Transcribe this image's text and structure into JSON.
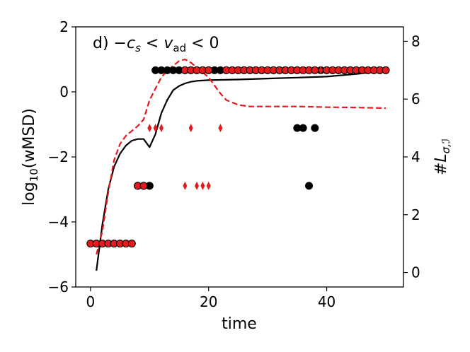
{
  "chart_data": {
    "type": "line",
    "annotation": "d) −cₛ < vₐₔ < 0",
    "annotation_parts": {
      "prefix": "d) −",
      "c": "c",
      "s": "s",
      "lt1": " < ",
      "v": "v",
      "ad": "ad",
      "lt2": " < 0"
    },
    "xlabel": "time",
    "ylabel_left": "log₁₀(wMSD)",
    "ylabel_left_parts": {
      "pre": "log",
      "sub": "10",
      "post": "(wMSD)"
    },
    "ylabel_right": "#Lσ,ℐ",
    "ylabel_right_parts": {
      "hash": "#",
      "L": "L",
      "sub": "σ,ℐ"
    },
    "xlim": [
      -2.5,
      53
    ],
    "ylim_left": [
      -6,
      2
    ],
    "ylim_right": [
      -0.5,
      8.5
    ],
    "xticks": [
      0,
      20,
      40
    ],
    "yticks_left": [
      -6,
      -4,
      -2,
      0,
      2
    ],
    "yticks_right": [
      0,
      2,
      4,
      6,
      8
    ],
    "tick_labels_left": [
      "−6",
      "−4",
      "−2",
      "0",
      "2"
    ],
    "tick_labels_right": [
      "0",
      "2",
      "4",
      "6",
      "8"
    ],
    "tick_labels_x": [
      "0",
      "20",
      "40"
    ],
    "grid": false,
    "colors": {
      "black": "#000000",
      "red": "#e41a1c"
    },
    "series": [
      {
        "style": "solid-black",
        "axis": "left",
        "x": [
          1,
          2,
          3,
          4,
          5,
          6,
          7,
          8,
          9,
          10,
          11,
          12,
          13,
          14,
          15,
          16,
          17,
          18,
          20,
          25,
          30,
          35,
          40,
          45,
          50
        ],
        "y": [
          -5.5,
          -4.1,
          -3.0,
          -2.3,
          -1.9,
          -1.65,
          -1.5,
          -1.45,
          -1.45,
          -1.7,
          -1.3,
          -0.65,
          -0.25,
          0.05,
          0.18,
          0.26,
          0.31,
          0.34,
          0.36,
          0.38,
          0.41,
          0.44,
          0.47,
          0.55,
          0.65
        ]
      },
      {
        "style": "dashed-red",
        "axis": "left",
        "x": [
          1,
          2,
          3,
          4,
          5,
          6,
          7,
          8,
          9,
          10,
          11,
          12,
          13,
          14,
          15,
          16,
          17,
          18,
          19,
          20,
          21,
          22,
          23,
          25,
          27,
          30,
          35,
          40,
          45,
          50
        ],
        "y": [
          -5.0,
          -4.3,
          -3.1,
          -2.1,
          -1.6,
          -1.35,
          -1.2,
          -1.05,
          -0.85,
          -0.25,
          0.1,
          0.45,
          0.65,
          0.8,
          0.95,
          1.0,
          0.9,
          0.75,
          0.6,
          0.45,
          0.2,
          -0.05,
          -0.25,
          -0.4,
          -0.45,
          -0.45,
          -0.45,
          -0.47,
          -0.48,
          -0.5
        ]
      },
      {
        "style": "black-circle",
        "axis": "right",
        "x": [
          0,
          1,
          2,
          3,
          4,
          5,
          6,
          7,
          8,
          9,
          10,
          11,
          12,
          13,
          14,
          15,
          16,
          17,
          18,
          19,
          20,
          21,
          22,
          23,
          24,
          25,
          26,
          27,
          28,
          29,
          30,
          31,
          32,
          33,
          34,
          35,
          36,
          37,
          38,
          39,
          40,
          41,
          42,
          43,
          44,
          45,
          46,
          47,
          48,
          49,
          50,
          8,
          9,
          10,
          35,
          36,
          38,
          37
        ],
        "y": [
          1,
          1,
          1,
          1,
          1,
          1,
          1,
          1,
          3,
          3,
          3,
          7,
          7,
          7,
          7,
          7,
          7,
          7,
          7,
          7,
          7,
          7,
          7,
          7,
          7,
          7,
          7,
          7,
          7,
          7,
          7,
          7,
          7,
          7,
          7,
          7,
          7,
          7,
          7,
          7,
          7,
          7,
          7,
          7,
          7,
          7,
          7,
          7,
          7,
          7,
          7,
          3,
          3,
          3,
          5,
          5,
          5,
          3
        ]
      },
      {
        "style": "red-circle",
        "axis": "right",
        "x": [
          0,
          1,
          2,
          3,
          4,
          5,
          6,
          7,
          8,
          9,
          16,
          17,
          18,
          19,
          20,
          23,
          24,
          25,
          26,
          27,
          28,
          29,
          30,
          31,
          32,
          33,
          34,
          35,
          36,
          37,
          38,
          40,
          41,
          42,
          43,
          44,
          45,
          46,
          47,
          48,
          49,
          50
        ],
        "y": [
          1,
          1,
          1,
          1,
          1,
          1,
          1,
          1,
          3,
          3,
          7,
          7,
          7,
          7,
          7,
          7,
          7,
          7,
          7,
          7,
          7,
          7,
          7,
          7,
          7,
          7,
          7,
          7,
          7,
          7,
          7,
          7,
          7,
          7,
          7,
          7,
          7,
          7,
          7,
          7,
          7,
          7
        ]
      },
      {
        "style": "red-diamond",
        "axis": "right",
        "x": [
          10,
          11,
          12,
          17,
          22,
          16,
          18,
          19,
          20,
          36,
          37,
          38,
          39
        ],
        "y": [
          5,
          5,
          5,
          5,
          5,
          3,
          3,
          3,
          3,
          7,
          7,
          7,
          7
        ]
      }
    ]
  }
}
